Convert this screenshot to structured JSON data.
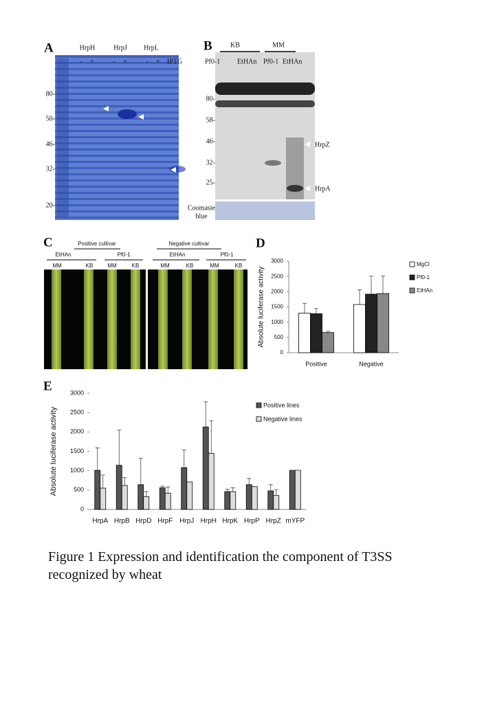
{
  "panel_a": {
    "letter": "A",
    "constructs": [
      "HrpH",
      "HrpJ",
      "HrpL"
    ],
    "signs": [
      "-",
      "+",
      "-",
      "+",
      "-",
      "+"
    ],
    "inducer": "IPTG",
    "markers": [
      "80-",
      "50-",
      "46-",
      "32-",
      "20-"
    ]
  },
  "panel_b": {
    "letter": "B",
    "groups": [
      "KB",
      "MM"
    ],
    "lanes": [
      "Pf0-1",
      "EtHAn",
      "Pf0-1",
      "EtHAn"
    ],
    "markers": [
      "80-",
      "58-",
      "46-",
      "32-",
      "25-"
    ],
    "proteins": [
      "HrpZ",
      "HrpA"
    ],
    "stain": [
      "Coomasie",
      "blue"
    ]
  },
  "panel_c": {
    "letter": "C",
    "cultivars": [
      "Positive cultivar",
      "Negative cultivar"
    ],
    "strains": [
      "EtHAn",
      "Pf0-1",
      "EtHAn",
      "Pf0-1"
    ],
    "media": [
      "MM",
      "KB",
      "MM",
      "KB",
      "MM",
      "KB",
      "MM",
      "KB"
    ]
  },
  "panel_d": {
    "letter": "D"
  },
  "panel_e": {
    "letter": "E"
  },
  "chart_data": [
    {
      "type": "bar",
      "y_label": "Absolute luciferase activity",
      "categories": [
        "Positive",
        "Negative"
      ],
      "series": [
        {
          "name": "MgCl",
          "color": "#ffffff",
          "values": [
            1300,
            1580
          ],
          "errors": [
            320,
            480
          ]
        },
        {
          "name": "Pf0-1",
          "color": "#222222",
          "values": [
            1280,
            1920
          ],
          "errors": [
            170,
            590
          ]
        },
        {
          "name": "EtHAn",
          "color": "#888888",
          "values": [
            660,
            1940
          ],
          "errors": [
            40,
            580
          ]
        }
      ],
      "ylim": [
        0,
        3000
      ],
      "yticks": [
        0,
        500,
        1000,
        1500,
        2000,
        2500,
        3000
      ],
      "legend": "right"
    },
    {
      "type": "bar",
      "y_label": "Absolute luciferase activity",
      "categories": [
        "HrpA",
        "HrpB",
        "HrpD",
        "HrpF",
        "HrpJ",
        "HrpH",
        "HrpK",
        "HrpP",
        "HrpZ",
        "mYFP"
      ],
      "series": [
        {
          "name": "Positive lines",
          "color": "#555555",
          "values": [
            1010,
            1140,
            640,
            560,
            1080,
            2130,
            460,
            640,
            480,
            1010
          ],
          "errors": [
            580,
            910,
            680,
            40,
            460,
            650,
            60,
            160,
            160,
            0
          ]
        },
        {
          "name": "Negative lines",
          "color": "#dddddd",
          "values": [
            550,
            620,
            330,
            420,
            710,
            1450,
            460,
            590,
            360,
            1010
          ],
          "errors": [
            340,
            200,
            130,
            160,
            0,
            840,
            100,
            0,
            150,
            0
          ]
        }
      ],
      "ylim": [
        0,
        3000
      ],
      "yticks": [
        0,
        500,
        1000,
        1500,
        2000,
        2500,
        3000
      ],
      "legend": "top-right"
    }
  ],
  "caption": [
    "Figure 1 Expression and identification the component of T3SS",
    "recognized by wheat"
  ]
}
